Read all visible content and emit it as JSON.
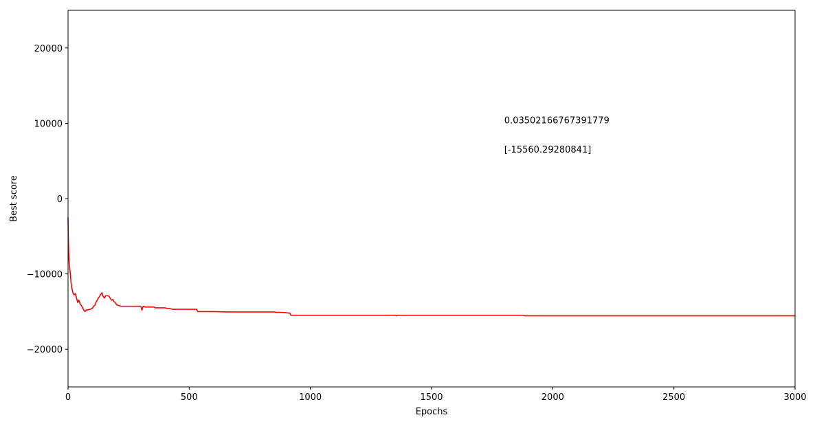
{
  "chart_data": {
    "type": "line",
    "title": "",
    "xlabel": "Epochs",
    "ylabel": "Best score",
    "xlim": [
      0,
      3000
    ],
    "ylim": [
      -25000,
      25000
    ],
    "xticks": [
      0,
      500,
      1000,
      1500,
      2000,
      2500,
      3000
    ],
    "xtick_labels": [
      "0",
      "500",
      "1000",
      "1500",
      "2000",
      "2500",
      "3000"
    ],
    "yticks": [
      -20000,
      -10000,
      0,
      10000,
      20000
    ],
    "ytick_labels": [
      "−20000",
      "−10000",
      "0",
      "10000",
      "20000"
    ],
    "grid": false,
    "legend": "none",
    "series_color": "#ff0000",
    "annotations": [
      {
        "text": "0.03502166767391779",
        "x": 1800,
        "y": 10000
      },
      {
        "text": "[-15560.29280841]",
        "x": 1800,
        "y": 6100
      }
    ],
    "series": [
      {
        "x": [
          0,
          1,
          3,
          5,
          8,
          10,
          12,
          15,
          18,
          20,
          25,
          30,
          35,
          40,
          45,
          50,
          55,
          60,
          65,
          70,
          75,
          80,
          90,
          100,
          105,
          110,
          115,
          120,
          125,
          130,
          135,
          140,
          145,
          150,
          155,
          160,
          165,
          170,
          175,
          180,
          185,
          190,
          195,
          200,
          210,
          220,
          230,
          250,
          280,
          300,
          305,
          310,
          320,
          340,
          355,
          360,
          380,
          400,
          410,
          420,
          430,
          450,
          480,
          500,
          530,
          535,
          560,
          600,
          650,
          700,
          750,
          800,
          850,
          860,
          880,
          900,
          910,
          915,
          920,
          925,
          930,
          1000,
          1200,
          1350,
          1355,
          1360,
          1500,
          1700,
          1880,
          1885,
          1890,
          2000,
          2500,
          3000
        ],
        "y": [
          -2500,
          -5000,
          -7500,
          -8800,
          -9500,
          -10200,
          -11000,
          -11800,
          -12200,
          -12500,
          -12800,
          -12600,
          -13200,
          -13800,
          -13500,
          -14000,
          -14200,
          -14500,
          -14800,
          -15000,
          -14800,
          -14800,
          -14700,
          -14600,
          -14300,
          -14200,
          -13800,
          -13500,
          -13200,
          -13000,
          -12700,
          -12500,
          -13000,
          -13200,
          -12900,
          -12900,
          -12900,
          -13000,
          -13300,
          -13500,
          -13400,
          -13700,
          -13800,
          -14100,
          -14200,
          -14300,
          -14300,
          -14300,
          -14300,
          -14300,
          -14800,
          -14300,
          -14400,
          -14400,
          -14400,
          -14500,
          -14500,
          -14500,
          -14600,
          -14600,
          -14700,
          -14700,
          -14700,
          -14700,
          -14700,
          -15000,
          -15000,
          -15000,
          -15050,
          -15050,
          -15050,
          -15050,
          -15050,
          -15100,
          -15100,
          -15150,
          -15200,
          -15200,
          -15500,
          -15500,
          -15500,
          -15500,
          -15500,
          -15500,
          -15550,
          -15500,
          -15500,
          -15500,
          -15500,
          -15560,
          -15560,
          -15560,
          -15560,
          -15560
        ]
      }
    ]
  }
}
